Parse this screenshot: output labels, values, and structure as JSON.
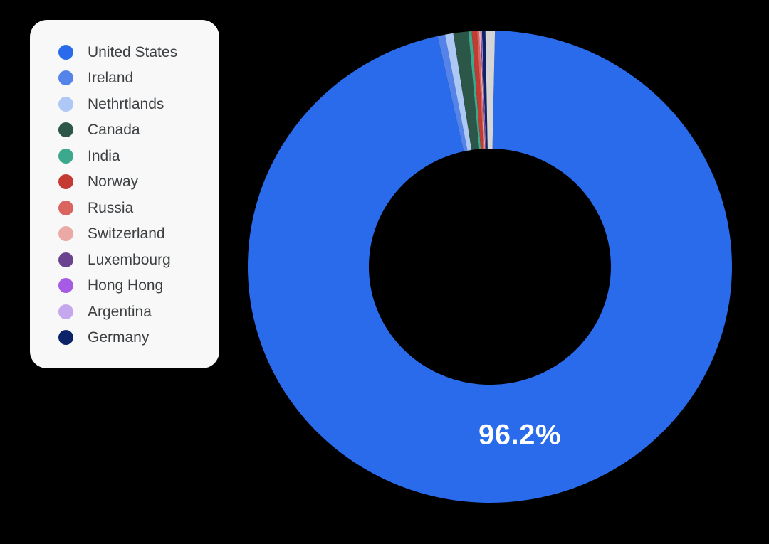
{
  "background_color": "#000000",
  "legend_card_color": "#F8F8F8",
  "legend_text_color": "#3C4043",
  "chart_data": {
    "type": "pie",
    "donut": true,
    "title": "",
    "center_label": "96.2%",
    "center_label_color": "#FFFFFF",
    "legend_position": "left",
    "direction": "clockwise",
    "start_angle_deg": 1.2,
    "slices": [
      {
        "label": "United States",
        "value": 96.2,
        "color": "#2A6BEC",
        "in_legend": true
      },
      {
        "label": "Ireland",
        "value": 0.5,
        "color": "#5484E9",
        "in_legend": true
      },
      {
        "label": "Nethrtlands",
        "value": 0.55,
        "color": "#AEC8F6",
        "in_legend": true
      },
      {
        "label": "Canada",
        "value": 1.0,
        "color": "#2B5648",
        "in_legend": true
      },
      {
        "label": "India",
        "value": 0.22,
        "color": "#3CA98C",
        "in_legend": true
      },
      {
        "label": "Norway",
        "value": 0.35,
        "color": "#C33B32",
        "in_legend": true
      },
      {
        "label": "Russia",
        "value": 0.13,
        "color": "#DA655F",
        "in_legend": true
      },
      {
        "label": "Switzerland",
        "value": 0.1,
        "color": "#EAA9A4",
        "in_legend": true
      },
      {
        "label": "Luxembourg",
        "value": 0.03,
        "color": "#6A4390",
        "in_legend": true
      },
      {
        "label": "Hong Hong",
        "value": 0.03,
        "color": "#A55BE3",
        "in_legend": true
      },
      {
        "label": "Argentina",
        "value": 0.04,
        "color": "#C4A7ED",
        "in_legend": true
      },
      {
        "label": "Germany",
        "value": 0.22,
        "color": "#0C2369",
        "in_legend": true
      },
      {
        "label": "Other",
        "value": 0.63,
        "color": "#D5D5D7",
        "in_legend": false
      }
    ]
  }
}
